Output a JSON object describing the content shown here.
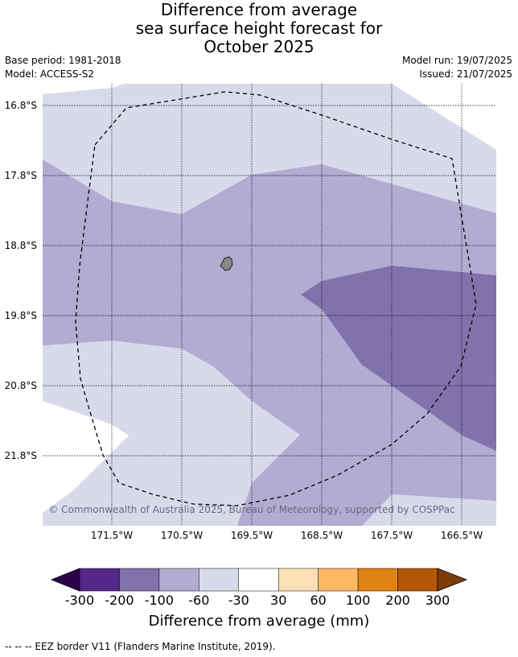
{
  "header": {
    "title_lines": [
      "Difference from average",
      "sea surface height forecast for",
      "October 2025"
    ],
    "base_period": "Base period: 1981-2018",
    "model": "Model: ACCESS-S2",
    "model_run": "Model run: 19/07/2025",
    "issued": "Issued: 21/07/2025"
  },
  "map": {
    "lat_labels": [
      "16.8°S",
      "17.8°S",
      "18.8°S",
      "19.8°S",
      "20.8°S",
      "21.8°S"
    ],
    "lon_labels": [
      "171.5°W",
      "170.5°W",
      "169.5°W",
      "168.5°W",
      "167.5°W",
      "166.5°W"
    ],
    "copyright": "© Commonwealth of Australia 2025, Bureau of Meteorology, supported by COSPPac",
    "colors": {
      "m200_m100": "#8073ac",
      "m100_m60": "#b2abd2",
      "m60_m30": "#d8daeb"
    }
  },
  "colorbar": {
    "tick_labels": [
      "-300",
      "-200",
      "-100",
      "-60",
      "-30",
      "30",
      "60",
      "100",
      "200",
      "300"
    ],
    "colors": [
      "#2d004b",
      "#542788",
      "#8073ac",
      "#b2abd2",
      "#d8daeb",
      "#ffffff",
      "#fee0b6",
      "#fdb863",
      "#e08214",
      "#b35806",
      "#7f3b08"
    ],
    "title": "Difference from average (mm)"
  },
  "footnote": "--  --  -- EEZ border V11 (Flanders Marine Institute, 2019)."
}
